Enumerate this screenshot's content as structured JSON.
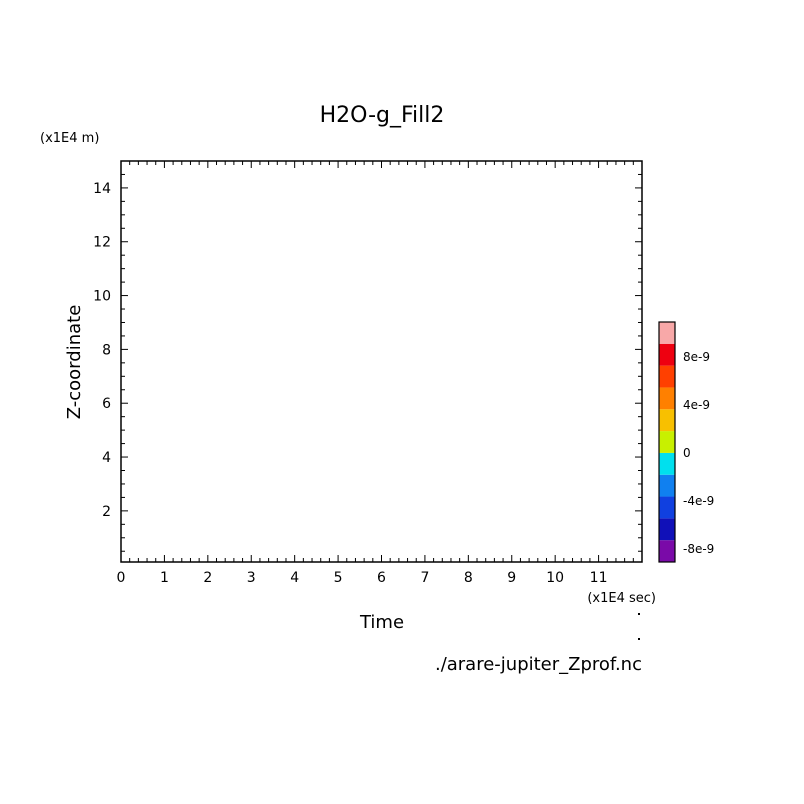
{
  "chart_data": {
    "type": "heatmap",
    "title": "H2O-g_Fill2",
    "xlabel": "Time",
    "ylabel": "Z-coordinate",
    "x_unit": "(x1E4 sec)",
    "y_unit": "(x1E4 m)",
    "xlim": [
      0,
      12
    ],
    "ylim": [
      0.1,
      15
    ],
    "x_ticks": [
      "0",
      "1",
      "2",
      "3",
      "4",
      "5",
      "6",
      "7",
      "8",
      "9",
      "10",
      "11"
    ],
    "x_tick_values": [
      0,
      1,
      2,
      3,
      4,
      5,
      6,
      7,
      8,
      9,
      10,
      11
    ],
    "y_ticks": [
      "2",
      "4",
      "6",
      "8",
      "10",
      "12",
      "14"
    ],
    "y_tick_values": [
      2,
      4,
      6,
      8,
      10,
      12,
      14
    ],
    "grid": false,
    "data": [],
    "colorbar": {
      "levels": [
        -1e-08,
        -8e-09,
        -6e-09,
        -4e-09,
        -2e-09,
        0,
        2e-09,
        4e-09,
        6e-09,
        8e-09,
        1e-08
      ],
      "colors": [
        "#7a0aa8",
        "#1010b8",
        "#1040e0",
        "#1080f0",
        "#00e0ee",
        "#c8f000",
        "#f8c000",
        "#ff8000",
        "#ff4000",
        "#ee0010",
        "#f8a8a8"
      ],
      "labels": [
        "-8e-9",
        "-4e-9",
        "0",
        "4e-9",
        "8e-9"
      ],
      "label_values": [
        -8e-09,
        -4e-09,
        0,
        4e-09,
        8e-09
      ]
    },
    "source": "./arare-jupiter_Zprof.nc"
  }
}
